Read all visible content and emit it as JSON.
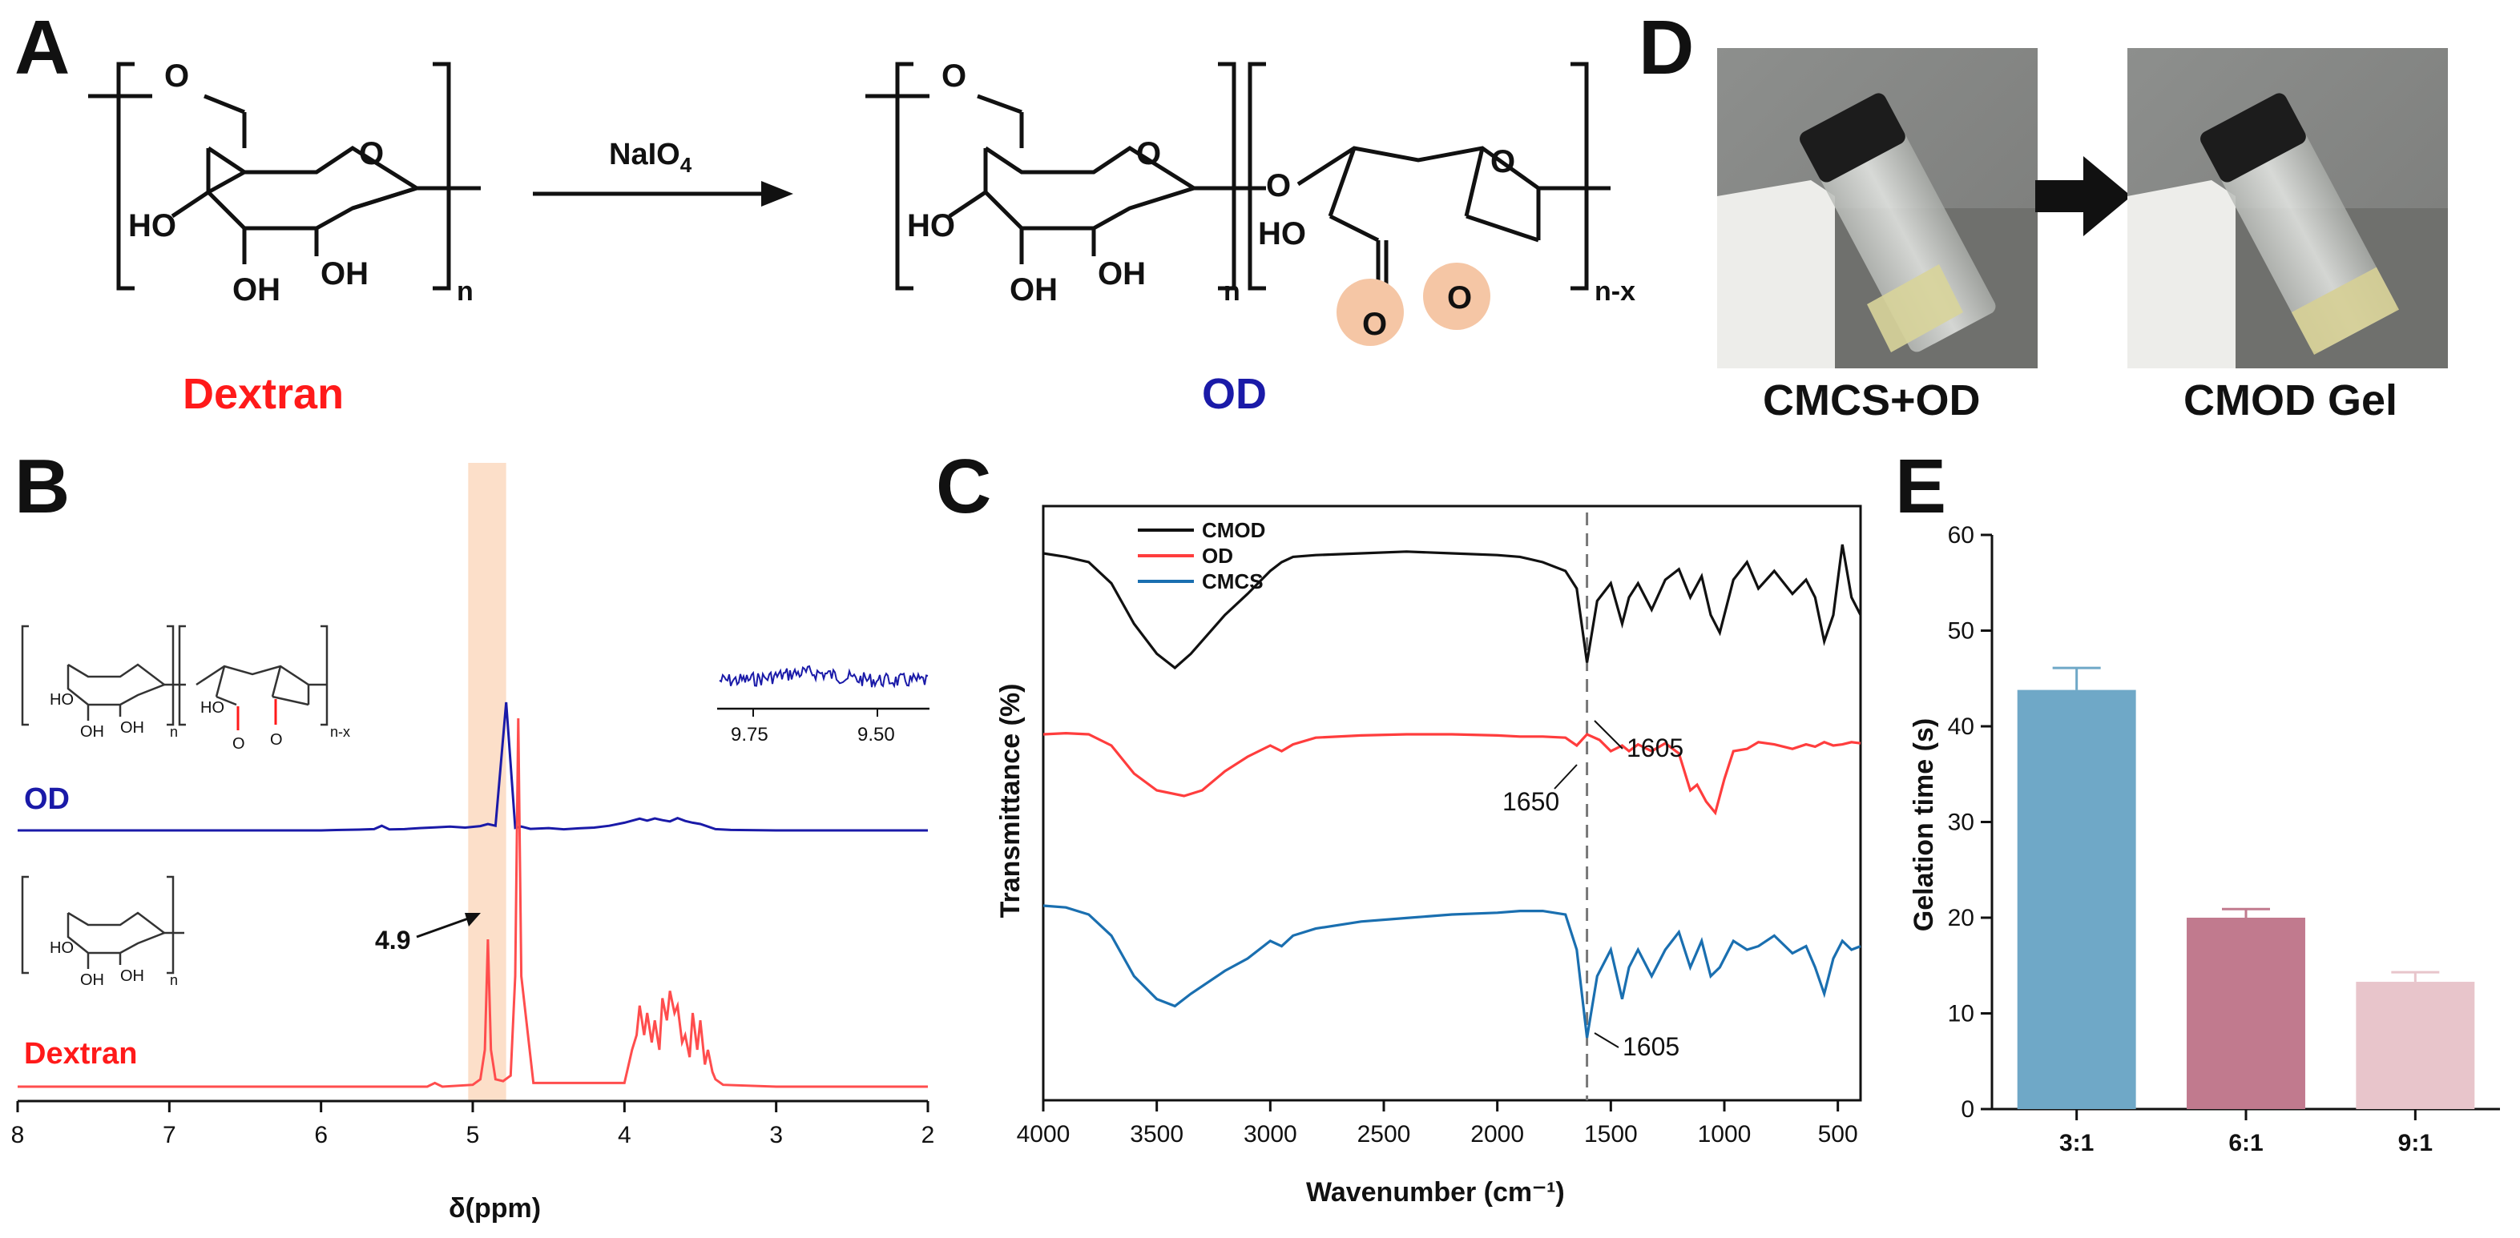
{
  "panels": {
    "a": "A",
    "b": "B",
    "c": "C",
    "d": "D",
    "e": "E"
  },
  "panel_a": {
    "reagent": "NaIO",
    "reagent_sub": "4",
    "dextran_label": "Dextran",
    "od_label": "OD",
    "hydroxyls": [
      "HO",
      "OH",
      "OH",
      "HO",
      "OH",
      "OH",
      "HO"
    ],
    "ring_o": "O",
    "subscript_n": "n",
    "subscript_nx": "n-x",
    "colors": {
      "dextran": "#ff1a1a",
      "od": "#1a1aa8",
      "aldehyde_highlight": "#f5c6a5"
    }
  },
  "panel_d": {
    "left_caption": "CMCS+OD",
    "right_caption": "CMOD Gel"
  },
  "chart_data": [
    {
      "id": "B",
      "type": "line",
      "xlabel": "δ(ppm)",
      "xlim": [
        8,
        2
      ],
      "xticks": [
        8,
        7,
        6,
        5,
        4,
        3,
        2
      ],
      "series": [
        {
          "name": "OD",
          "color": "#1a1aa8",
          "x": [
            8.0,
            6.0,
            5.9,
            5.75,
            5.65,
            5.6,
            5.55,
            5.45,
            5.35,
            5.25,
            5.15,
            5.05,
            4.95,
            4.9,
            4.85,
            4.78,
            4.72,
            4.68,
            4.62,
            4.5,
            4.4,
            4.3,
            4.2,
            4.1,
            4.0,
            3.9,
            3.85,
            3.8,
            3.75,
            3.7,
            3.65,
            3.6,
            3.55,
            3.5,
            3.45,
            3.4,
            3.3,
            3.0,
            2.0
          ],
          "y": [
            0,
            0,
            0.3,
            0.6,
            1.0,
            3.6,
            0.8,
            1.0,
            1.8,
            2.4,
            3.0,
            2.2,
            3.4,
            5.0,
            3.6,
            100,
            2.0,
            3.0,
            1.2,
            1.8,
            0.9,
            1.6,
            2.2,
            3.6,
            6.0,
            9.2,
            7.6,
            9.4,
            8.0,
            7.0,
            9.6,
            7.4,
            6.0,
            5.0,
            3.0,
            1.0,
            0.4,
            0,
            0
          ]
        },
        {
          "name": "Dextran",
          "color": "#ff4d4d",
          "x": [
            8.0,
            5.3,
            5.25,
            5.2,
            5.0,
            4.95,
            4.92,
            4.9,
            4.88,
            4.85,
            4.8,
            4.75,
            4.72,
            4.7,
            4.68,
            4.6,
            4.0,
            3.95,
            3.92,
            3.9,
            3.87,
            3.85,
            3.82,
            3.8,
            3.77,
            3.75,
            3.72,
            3.7,
            3.67,
            3.65,
            3.62,
            3.6,
            3.57,
            3.55,
            3.52,
            3.5,
            3.47,
            3.45,
            3.42,
            3.4,
            3.35,
            3.0,
            2.0
          ],
          "y": [
            0,
            0,
            1.0,
            0,
            0.5,
            2.0,
            10.0,
            40.0,
            10.0,
            2.0,
            1.5,
            3.0,
            30.0,
            100.0,
            30.0,
            1.0,
            1.0,
            10.0,
            14.0,
            22.0,
            14.0,
            20.0,
            12.0,
            18.0,
            10.0,
            24.0,
            18.0,
            26.0,
            20.0,
            22.0,
            12.0,
            14.0,
            8.0,
            20.0,
            10.0,
            18.0,
            6.0,
            10.0,
            4.0,
            2.0,
            0.5,
            0,
            0
          ]
        }
      ],
      "annotation": "4.9",
      "series_labels": [
        "OD",
        "Dextran"
      ],
      "inset_ticks": [
        "9.75",
        "9.50"
      ],
      "highlight_range": [
        5.03,
        4.78
      ],
      "highlight_color": "#fbd9bf"
    },
    {
      "id": "C",
      "type": "line",
      "xlabel": "Wavenumber (cm⁻¹)",
      "ylabel": "Transmittance (%)",
      "xlim": [
        4000,
        400
      ],
      "xticks": [
        4000,
        3500,
        3000,
        2500,
        2000,
        1500,
        1000,
        500
      ],
      "legend": [
        "CMOD",
        "OD",
        "CMCS"
      ],
      "legend_position": "top-left",
      "annotations": [
        "1605",
        "1650",
        "1605"
      ],
      "dashed_line_at": 1605,
      "series": [
        {
          "name": "CMOD",
          "color": "#111111",
          "x": [
            4000,
            3900,
            3800,
            3700,
            3600,
            3500,
            3420,
            3350,
            3200,
            3100,
            3000,
            2950,
            2900,
            2800,
            2600,
            2400,
            2200,
            2000,
            1900,
            1800,
            1700,
            1650,
            1605,
            1560,
            1500,
            1450,
            1420,
            1380,
            1320,
            1260,
            1200,
            1150,
            1100,
            1060,
            1020,
            960,
            900,
            850,
            780,
            700,
            640,
            600,
            560,
            520,
            480,
            440,
            400
          ],
          "y": [
            0.95,
            0.93,
            0.9,
            0.78,
            0.55,
            0.38,
            0.3,
            0.38,
            0.6,
            0.72,
            0.85,
            0.9,
            0.93,
            0.94,
            0.95,
            0.96,
            0.95,
            0.94,
            0.93,
            0.9,
            0.85,
            0.75,
            0.33,
            0.68,
            0.78,
            0.55,
            0.7,
            0.78,
            0.63,
            0.8,
            0.86,
            0.7,
            0.82,
            0.6,
            0.5,
            0.8,
            0.9,
            0.75,
            0.85,
            0.72,
            0.8,
            0.7,
            0.45,
            0.6,
            1.0,
            0.7,
            0.6
          ]
        },
        {
          "name": "OD",
          "color": "#ff3d3d",
          "x": [
            4000,
            3900,
            3800,
            3700,
            3600,
            3500,
            3380,
            3300,
            3200,
            3100,
            3000,
            2950,
            2900,
            2800,
            2600,
            2400,
            2200,
            2000,
            1900,
            1800,
            1700,
            1650,
            1605,
            1550,
            1500,
            1450,
            1420,
            1380,
            1320,
            1260,
            1200,
            1150,
            1120,
            1080,
            1040,
            1000,
            960,
            900,
            850,
            780,
            700,
            640,
            600,
            560,
            520,
            480,
            440,
            400
          ],
          "y": [
            0.95,
            0.96,
            0.95,
            0.85,
            0.6,
            0.45,
            0.4,
            0.45,
            0.62,
            0.75,
            0.85,
            0.8,
            0.86,
            0.92,
            0.94,
            0.95,
            0.95,
            0.94,
            0.93,
            0.93,
            0.92,
            0.85,
            0.95,
            0.9,
            0.8,
            0.85,
            0.8,
            0.86,
            0.8,
            0.87,
            0.78,
            0.45,
            0.5,
            0.35,
            0.25,
            0.55,
            0.8,
            0.82,
            0.88,
            0.86,
            0.82,
            0.86,
            0.84,
            0.88,
            0.85,
            0.86,
            0.88,
            0.87
          ]
        },
        {
          "name": "CMCS",
          "color": "#1a6fb0",
          "x": [
            4000,
            3900,
            3800,
            3700,
            3600,
            3500,
            3420,
            3350,
            3200,
            3100,
            3000,
            2950,
            2900,
            2800,
            2600,
            2400,
            2200,
            2000,
            1900,
            1800,
            1700,
            1650,
            1605,
            1560,
            1500,
            1450,
            1420,
            1380,
            1320,
            1260,
            1200,
            1150,
            1100,
            1060,
            1020,
            960,
            900,
            850,
            780,
            700,
            640,
            600,
            560,
            520,
            480,
            440,
            400
          ],
          "y": [
            0.95,
            0.94,
            0.9,
            0.78,
            0.55,
            0.42,
            0.38,
            0.45,
            0.58,
            0.65,
            0.75,
            0.72,
            0.78,
            0.82,
            0.86,
            0.88,
            0.9,
            0.91,
            0.92,
            0.92,
            0.9,
            0.7,
            0.2,
            0.55,
            0.7,
            0.42,
            0.6,
            0.7,
            0.55,
            0.7,
            0.8,
            0.6,
            0.75,
            0.55,
            0.6,
            0.75,
            0.7,
            0.72,
            0.78,
            0.68,
            0.72,
            0.6,
            0.45,
            0.65,
            0.75,
            0.7,
            0.72
          ]
        }
      ]
    },
    {
      "id": "E",
      "type": "bar",
      "ylabel": "Gelation time (s)",
      "ylim": [
        0,
        60
      ],
      "yticks": [
        0,
        10,
        20,
        30,
        40,
        50,
        60
      ],
      "categories": [
        "3:1",
        "6:1",
        "9:1"
      ],
      "values": [
        43.8,
        20.0,
        13.3
      ],
      "errors": [
        2.3,
        0.9,
        1.0
      ],
      "colors": [
        "#6fa8c7",
        "#c17a8e",
        "#e8c5cb"
      ]
    }
  ]
}
